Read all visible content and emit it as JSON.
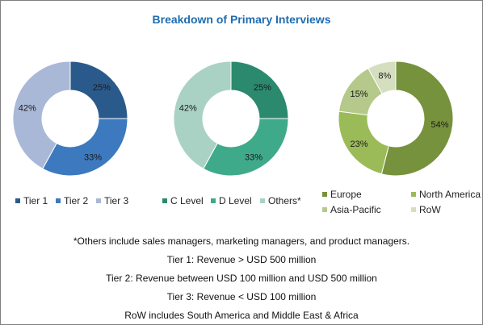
{
  "title": "Breakdown of Primary Interviews",
  "chart_data": [
    {
      "type": "pie",
      "donut": true,
      "categories": [
        "Tier 1",
        "Tier 2",
        "Tier 3"
      ],
      "values": [
        25,
        33,
        42
      ],
      "value_labels": [
        "25%",
        "33%",
        "42%"
      ],
      "colors": [
        "#2a5a8c",
        "#3d79bf",
        "#a9b8d7"
      ]
    },
    {
      "type": "pie",
      "donut": true,
      "categories": [
        "C Level",
        "D Level",
        "Others*"
      ],
      "values": [
        25,
        33,
        42
      ],
      "value_labels": [
        "25%",
        "33%",
        "42%"
      ],
      "colors": [
        "#2b8a6e",
        "#3faa8a",
        "#a9d2c5"
      ]
    },
    {
      "type": "pie",
      "donut": true,
      "categories": [
        "Europe",
        "North America",
        "Asia-Pacific",
        "RoW"
      ],
      "values": [
        54,
        23,
        15,
        8
      ],
      "value_labels": [
        "54%",
        "23%",
        "15%",
        "8%"
      ],
      "colors": [
        "#76923c",
        "#9bbb59",
        "#b4c98a",
        "#d5dfc0"
      ]
    }
  ],
  "notes": [
    "*Others include sales managers, marketing managers, and product managers.",
    "Tier 1: Revenue > USD 500 million",
    "Tier 2: Revenue between USD 100 million and USD 500 million",
    "Tier 3: Revenue < USD 100 million",
    "RoW includes South America and Middle East & Africa"
  ]
}
